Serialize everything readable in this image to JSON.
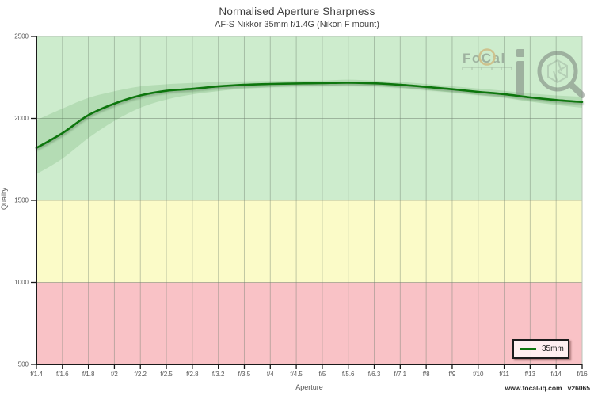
{
  "title": "Normalised Aperture Sharpness",
  "subtitle": "AF-S Nikkor 35mm f/1.4G (Nikon F mount)",
  "watermark": {
    "brand": "FoCal",
    "mark": "iQ"
  },
  "footer": {
    "site": "www.focal-iq.com",
    "version": "v26065"
  },
  "legend": {
    "items": [
      {
        "label": "35mm",
        "color": "#0f760f"
      }
    ]
  },
  "colors": {
    "line": "#0f760f",
    "confidence_fill": "#3c8c3c",
    "band_green": "#cdeccd",
    "band_yellow": "#fbfbc8",
    "band_red": "#f9c2c6",
    "grid": "#6e7e6e",
    "axis": "#1a1a1a",
    "tick_text": "#555555"
  },
  "chart_data": {
    "type": "line",
    "title": "Normalised Aperture Sharpness",
    "subtitle": "AF-S Nikkor 35mm f/1.4G (Nikon F mount)",
    "xlabel": "Aperture",
    "ylabel": "Quality",
    "categories": [
      "f/1.4",
      "f/1.6",
      "f/1.8",
      "f/2",
      "f/2.2",
      "f/2.5",
      "f/2.8",
      "f/3.2",
      "f/3.5",
      "f/4",
      "f/4.5",
      "f/5",
      "f/5.6",
      "f/6.3",
      "f/7.1",
      "f/8",
      "f/9",
      "f/10",
      "f/11",
      "f/13",
      "f/14",
      "f/16"
    ],
    "ylim": [
      500,
      2500
    ],
    "yticks": [
      500,
      1000,
      1500,
      2000,
      2500
    ],
    "grid": true,
    "legend_position": "bottom-right",
    "quality_bands": [
      {
        "from": 1500,
        "to": 2500,
        "color": "#cdeccd"
      },
      {
        "from": 1000,
        "to": 1500,
        "color": "#fbfbc8"
      },
      {
        "from": 500,
        "to": 1000,
        "color": "#f9c2c6"
      }
    ],
    "series": [
      {
        "name": "35mm",
        "color": "#0f760f",
        "values": [
          1820,
          1910,
          2020,
          2090,
          2140,
          2168,
          2180,
          2195,
          2205,
          2210,
          2213,
          2215,
          2218,
          2214,
          2205,
          2192,
          2178,
          2162,
          2148,
          2128,
          2112,
          2100
        ],
        "band_upper": [
          1990,
          2060,
          2125,
          2165,
          2195,
          2208,
          2216,
          2222,
          2226,
          2228,
          2230,
          2231,
          2236,
          2230,
          2222,
          2210,
          2196,
          2182,
          2168,
          2152,
          2140,
          2132
        ],
        "band_lower": [
          1660,
          1755,
          1880,
          1985,
          2065,
          2115,
          2146,
          2166,
          2182,
          2190,
          2196,
          2199,
          2202,
          2197,
          2187,
          2173,
          2158,
          2142,
          2126,
          2102,
          2082,
          2065
        ]
      }
    ]
  }
}
